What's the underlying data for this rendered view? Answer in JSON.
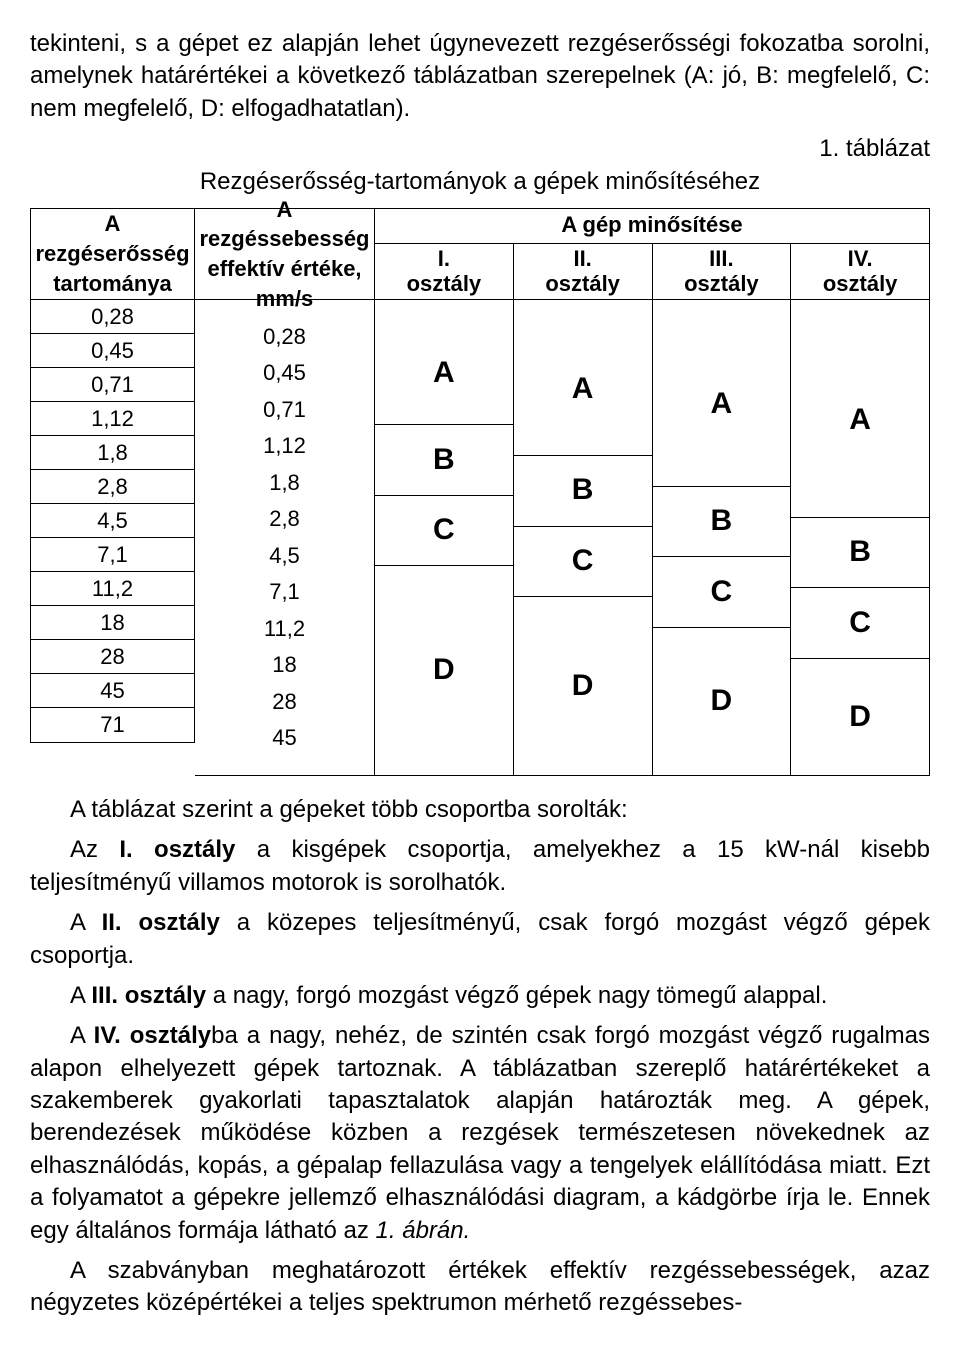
{
  "doc": {
    "para1": "tekinteni, s a gépet ez alapján lehet úgynevezett rezgéserősségi fokozatba sorolni, amelynek határértékei a következő táblázatban szerepelnek (A: jó, B: megfelelő, C: nem megfelelő, D: elfogadhatatlan).",
    "caption_num": "1. táblázat",
    "caption_title": "Rezgéserősség-tartományok a gépek minősítéséhez",
    "para2": "A táblázat szerint a gépeket több csoportba sorolták:",
    "para3a": "Az ",
    "para3b": "I. osztály",
    "para3c": " a kisgépek csoportja, amelyekhez a 15 kW-nál kisebb teljesítményű villamos motorok is sorolhatók.",
    "para4a": "A ",
    "para4b": "II. osztály",
    "para4c": " a közepes teljesítményű, csak forgó mozgást végző gépek csoportja.",
    "para5a": "A ",
    "para5b": "III. osztály",
    "para5c": " a nagy, forgó mozgást végző gépek nagy tömegű alappal.",
    "para6a": "A ",
    "para6b": "IV. osztály",
    "para6c": "ba a nagy, nehéz, de szintén csak forgó mozgást végző rugalmas alapon elhelyezett gépek tartoznak. A táblázatban szereplő határértékeket a szakemberek gyakorlati tapasztalatok alapján határozták meg. A gépek, berendezések működése közben a rezgések természetesen növekednek az elhasználódás, kopás, a gépalap fellazulása vagy a tengelyek elállítódása miatt. Ezt a folyamatot a gépekre jellemző elhasználódási diagram, a kádgörbe írja le. Ennek egy általános formája látható az ",
    "para6d": "1. ábrán.",
    "para7": "A szabványban meghatározott értékek effektív rezgéssebességek, azaz négyzetes középértékei a teljes spektrumon mérhető rezgéssebes-"
  },
  "table": {
    "col1_header": "A rezgéserősség tartománya",
    "col2_header": "A rezgéssebesség effektív értéke, mm/s",
    "group_header": "A gép minősítése",
    "class_labels": [
      "I.\nosztály",
      "II.\nosztály",
      "III.\nosztály",
      "IV.\nosztály"
    ],
    "range": [
      "0,28",
      "0,45",
      "0,71",
      "1,12",
      "1,8",
      "2,8",
      "4,5",
      "7,1",
      "11,2",
      "18",
      "28",
      "45",
      "71"
    ],
    "speed": [
      "0,28",
      "0,45",
      "0,71",
      "1,12",
      "1,8",
      "2,8",
      "4,5",
      "7,1",
      "11,2",
      "18",
      "28",
      "45"
    ],
    "class_bands": {
      "I": [
        {
          "label": "A",
          "span": 3
        },
        {
          "label": "B",
          "span": 2
        },
        {
          "label": "C",
          "span": 2
        },
        {
          "label": "D",
          "span": 7
        }
      ],
      "II": [
        {
          "label": "A",
          "span": 4
        },
        {
          "label": "B",
          "span": 2
        },
        {
          "label": "C",
          "span": 2
        },
        {
          "label": "D",
          "span": 6
        }
      ],
      "III": [
        {
          "label": "A",
          "span": 5
        },
        {
          "label": "B",
          "span": 2
        },
        {
          "label": "C",
          "span": 2
        },
        {
          "label": "D",
          "span": 5
        }
      ],
      "IV": [
        {
          "label": "A",
          "span": 6
        },
        {
          "label": "B",
          "span": 2
        },
        {
          "label": "C",
          "span": 2
        },
        {
          "label": "D",
          "span": 4
        }
      ]
    },
    "total_rows": 14,
    "colors": {
      "bg": "#ffffff",
      "fg": "#000000",
      "border": "#000000"
    }
  }
}
